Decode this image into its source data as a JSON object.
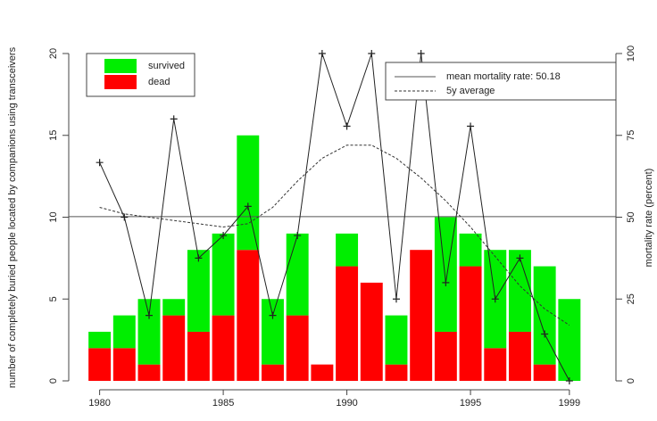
{
  "chart_data": {
    "type": "bar",
    "stacked": true,
    "x": [
      1980,
      1981,
      1982,
      1983,
      1984,
      1985,
      1986,
      1987,
      1988,
      1989,
      1990,
      1991,
      1992,
      1993,
      1994,
      1995,
      1996,
      1997,
      1998,
      1999
    ],
    "xlim": [
      1979.4,
      1999.8
    ],
    "xticks": [
      1980,
      1985,
      1990,
      1995,
      1999
    ],
    "ylim": [
      0,
      20
    ],
    "yticks": [
      0,
      5,
      10,
      15,
      20
    ],
    "y2lim": [
      0,
      100
    ],
    "y2ticks": [
      0,
      25,
      50,
      75,
      100
    ],
    "y_label": "number of completely buried people located by companions using transceivers",
    "y2_label": "mortality rate (percent)",
    "series": [
      {
        "name": "dead",
        "color": "#ff0000",
        "values": [
          2,
          2,
          1,
          4,
          3,
          4,
          8,
          1,
          4,
          1,
          7,
          6,
          1,
          8,
          3,
          7,
          2,
          3,
          1,
          0
        ]
      },
      {
        "name": "survived",
        "color": "#00ee00",
        "values": [
          1,
          2,
          4,
          1,
          5,
          5,
          7,
          4,
          5,
          0,
          2,
          0,
          3,
          0,
          7,
          2,
          6,
          5,
          6,
          5
        ]
      },
      {
        "axis": "y2",
        "kind": "line",
        "marker": "+",
        "color": "#222222",
        "values": [
          66.7,
          50,
          20,
          80,
          37.5,
          44.4,
          53.3,
          20,
          44.4,
          100,
          77.8,
          100,
          25,
          100,
          30,
          77.8,
          25,
          37.5,
          14.3,
          0
        ]
      },
      {
        "name": "5y average",
        "axis": "y2",
        "kind": "line",
        "dashed": true,
        "color": "#333333",
        "values": [
          53,
          51,
          50,
          49,
          48,
          47,
          48,
          53,
          61,
          68,
          72,
          72,
          68,
          62,
          55,
          47,
          38,
          29,
          22,
          17
        ]
      }
    ],
    "mean_line": {
      "name": "mean mortality rate: 50.18",
      "axis": "y2",
      "value": 50.18,
      "color": "#555555"
    }
  }
}
